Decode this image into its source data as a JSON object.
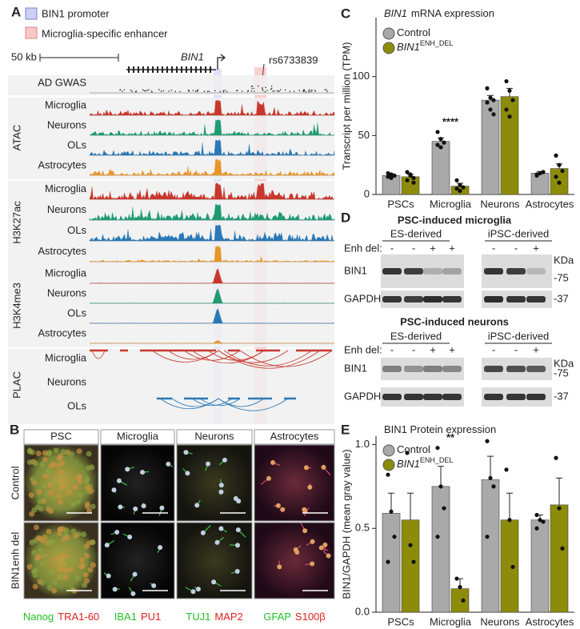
{
  "panel_a": {
    "label": "A",
    "legend": [
      "BIN1 promoter",
      "Microglia-specific enhancer"
    ],
    "scale": "50 kb",
    "gene": "BIN1",
    "snp": "rs6733839",
    "gwas": "AD GWAS",
    "groups": [
      {
        "name": "ATAC",
        "rows": [
          "Microglia",
          "Neurons",
          "OLs",
          "Astrocytes"
        ]
      },
      {
        "name": "H3K27ac",
        "rows": [
          "Microglia",
          "Neurons",
          "OLs",
          "Astrocytes"
        ]
      },
      {
        "name": "H3K4me3",
        "rows": [
          "Microglia",
          "Neurons",
          "OLs",
          "Astrocytes"
        ]
      },
      {
        "name": "PLAC",
        "rows": [
          "Microglia",
          "Neurons",
          "OLs"
        ]
      }
    ]
  },
  "panel_b": {
    "label": "B",
    "columns": [
      "PSC",
      "Microglia",
      "Neurons",
      "Astrocytes"
    ],
    "rows": [
      "Control",
      "BIN1enh del"
    ],
    "stains": [
      [
        "Nanog",
        "TRA1-60"
      ],
      [
        "IBA1",
        "PU1"
      ],
      [
        "TUJ1",
        "MAP2"
      ],
      [
        "GFAP",
        "S100β"
      ]
    ]
  },
  "panel_d": {
    "label": "D",
    "unit": "KDa",
    "lane_label": "Enh del:",
    "blots": [
      {
        "title": "PSC-induced microglia",
        "groups": [
          "ES-derived",
          "iPSC-derived"
        ],
        "lanes": [
          "-",
          "-",
          "+",
          "+",
          "-",
          "-",
          "+"
        ],
        "bands": [
          {
            "name": "BIN1",
            "marker": "-75"
          },
          {
            "name": "GAPDH",
            "marker": "-37"
          }
        ]
      },
      {
        "title": "PSC-induced neurons",
        "groups": [
          "ES-derived",
          "iPSC-derived"
        ],
        "lanes": [
          "-",
          "-",
          "+",
          "+",
          "-",
          "-",
          "+"
        ],
        "bands": [
          {
            "name": "BIN1",
            "marker": "-75"
          },
          {
            "name": "GAPDH",
            "marker": "-37"
          }
        ]
      }
    ]
  },
  "chart_data": [
    {
      "panel": "C",
      "type": "bar",
      "title_italic": "BIN1",
      "title": "mRNA expression",
      "ylabel": "Transcript per million (TPM)",
      "categories": [
        "PSCs",
        "Microglia",
        "Neurons",
        "Astrocytes"
      ],
      "ylim": [
        0,
        150
      ],
      "yticks": [
        0,
        50,
        100
      ],
      "series": [
        {
          "name": "Control",
          "color": "#a9a9a9",
          "values": [
            16,
            45,
            80,
            18
          ],
          "errors": [
            1.5,
            3,
            4,
            1.5
          ],
          "points": [
            [
              15,
              17,
              16,
              18,
              14,
              16
            ],
            [
              53,
              47,
              44,
              42,
              40,
              44
            ],
            [
              90,
              82,
              80,
              78,
              72,
              68
            ],
            [
              17,
              18,
              19,
              16
            ]
          ]
        },
        {
          "name": "BIN1",
          "name_sup": "ENH_DEL",
          "color": "#8c8c0a",
          "values": [
            15,
            7,
            83,
            22
          ],
          "errors": [
            2,
            2.5,
            7,
            4
          ],
          "points": [
            [
              19,
              17,
              14,
              12,
              16,
              10
            ],
            [
              12,
              8,
              6,
              5,
              3
            ],
            [
              96,
              88,
              80,
              72,
              66
            ],
            [
              33,
              25,
              20,
              15,
              10
            ]
          ]
        }
      ],
      "annotations": [
        {
          "category": 1,
          "text": "****"
        }
      ]
    },
    {
      "panel": "E",
      "type": "bar",
      "title": "BIN1 Protein expression",
      "ylabel": "BIN1/GAPDH (mean gray value)",
      "categories": [
        "PSCs",
        "Microglia",
        "Neurons",
        "Astrocytes"
      ],
      "ylim": [
        0,
        1.05
      ],
      "yticks": [
        {
          "value": 0,
          "label": "0.0"
        },
        {
          "value": 0.5,
          "label": "0.5"
        },
        {
          "value": 1,
          "label": "1.0"
        }
      ],
      "series": [
        {
          "name": "Control",
          "color": "#a9a9a9",
          "values": [
            0.59,
            0.75,
            0.79,
            0.55
          ],
          "errors": [
            0.12,
            0.12,
            0.14,
            0.03
          ],
          "points": [
            [
              0.82,
              0.6,
              0.45,
              0.3
            ],
            [
              0.98,
              0.75,
              0.62,
              0.45
            ],
            [
              1.02,
              0.8,
              0.75,
              0.45
            ],
            [
              0.58,
              0.55,
              0.54,
              0.5
            ]
          ]
        },
        {
          "name": "BIN1",
          "name_sup": "ENH_DEL",
          "color": "#8c8c0a",
          "values": [
            0.55,
            0.14,
            0.55,
            0.64
          ],
          "errors": [
            0.16,
            0.06,
            0.16,
            0.16
          ],
          "points": [
            [
              0.95,
              0.4,
              0.3
            ],
            [
              0.2,
              0.15,
              0.07
            ],
            [
              0.85,
              0.55,
              0.27
            ],
            [
              0.92,
              0.62,
              0.38
            ]
          ]
        }
      ],
      "annotations": [
        {
          "category": 1,
          "text": "**"
        }
      ]
    }
  ]
}
